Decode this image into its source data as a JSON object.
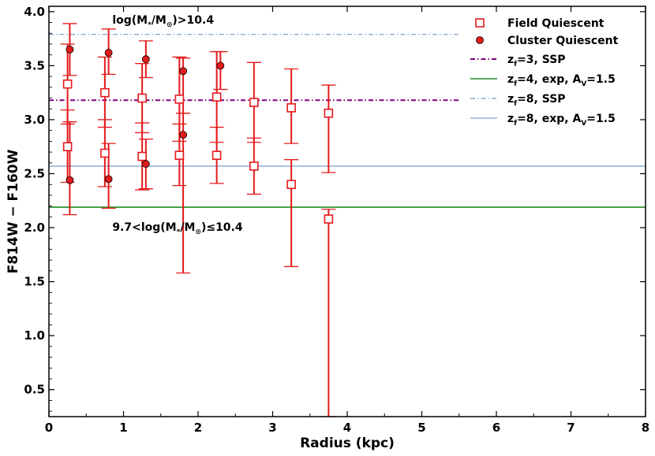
{
  "chart_data": {
    "type": "scatter",
    "xlabel": "Radius (kpc)",
    "ylabel": "F814W − F160W",
    "xlim": [
      0,
      8
    ],
    "ylim": [
      0.25,
      4.05
    ],
    "x_ticks": [
      0,
      1,
      2,
      3,
      4,
      5,
      6,
      7,
      8
    ],
    "y_ticks": [
      0.5,
      1.0,
      1.5,
      2.0,
      2.5,
      3.0,
      3.5,
      4.0
    ],
    "x_tick_labels": [
      "0",
      "1",
      "2",
      "3",
      "4",
      "5",
      "6",
      "7",
      "8"
    ],
    "y_tick_labels": [
      "0.5",
      "1.0",
      "1.5",
      "2.0",
      "2.5",
      "3.0",
      "3.5",
      "4.0"
    ],
    "grid": false,
    "legend_position": "top-right",
    "annotations": {
      "high_mass": {
        "main": "log(M",
        "sub1": "*",
        "mid": "/M",
        "sub2": "⊙",
        "tail": ")>10.4",
        "x": 0.85,
        "y": 3.89
      },
      "low_mass": {
        "main": "9.7<log(M",
        "sub1": "*",
        "mid": "/M",
        "sub2": "⊙",
        "tail": ")≤10.4",
        "x": 0.85,
        "y": 1.97
      }
    },
    "series": [
      {
        "name": "Field Quiescent",
        "marker": "square-open",
        "color": "#e41a1c",
        "points": [
          {
            "x": 0.25,
            "y": 3.33,
            "lo": 2.96,
            "hi": 3.7
          },
          {
            "x": 0.75,
            "y": 3.25,
            "lo": 2.93,
            "hi": 3.58
          },
          {
            "x": 1.25,
            "y": 3.2,
            "lo": 2.88,
            "hi": 3.52
          },
          {
            "x": 1.75,
            "y": 3.19,
            "lo": 2.8,
            "hi": 3.58
          },
          {
            "x": 2.25,
            "y": 3.21,
            "lo": 2.79,
            "hi": 3.63
          },
          {
            "x": 2.75,
            "y": 3.16,
            "lo": 2.79,
            "hi": 3.53
          },
          {
            "x": 3.25,
            "y": 3.11,
            "lo": 2.78,
            "hi": 3.47
          },
          {
            "x": 3.75,
            "y": 3.06,
            "lo": 2.51,
            "hi": 3.32
          },
          {
            "x": 0.25,
            "y": 2.75,
            "lo": 2.42,
            "hi": 3.09
          },
          {
            "x": 0.75,
            "y": 2.69,
            "lo": 2.38,
            "hi": 3.0
          },
          {
            "x": 1.25,
            "y": 2.66,
            "lo": 2.35,
            "hi": 2.97
          },
          {
            "x": 1.75,
            "y": 2.67,
            "lo": 2.39,
            "hi": 2.96
          },
          {
            "x": 2.25,
            "y": 2.67,
            "lo": 2.41,
            "hi": 2.93
          },
          {
            "x": 2.75,
            "y": 2.57,
            "lo": 2.31,
            "hi": 2.83
          },
          {
            "x": 3.25,
            "y": 2.4,
            "lo": 1.64,
            "hi": 2.63
          },
          {
            "x": 3.75,
            "y": 2.08,
            "lo": 0.25,
            "hi": 2.17
          }
        ]
      },
      {
        "name": "Cluster Quiescent",
        "marker": "circle-filled",
        "color": "#e41a1c",
        "points": [
          {
            "x": 0.28,
            "y": 3.65,
            "lo": 3.41,
            "hi": 3.89
          },
          {
            "x": 0.8,
            "y": 3.62,
            "lo": 3.42,
            "hi": 3.84
          },
          {
            "x": 1.3,
            "y": 3.56,
            "lo": 3.39,
            "hi": 3.73
          },
          {
            "x": 1.8,
            "y": 3.45,
            "lo": 3.06,
            "hi": 3.57
          },
          {
            "x": 2.3,
            "y": 3.5,
            "lo": 3.28,
            "hi": 3.63
          },
          {
            "x": 0.28,
            "y": 2.44,
            "lo": 2.12,
            "hi": 2.98
          },
          {
            "x": 0.8,
            "y": 2.45,
            "lo": 2.18,
            "hi": 2.78
          },
          {
            "x": 1.3,
            "y": 2.59,
            "lo": 2.36,
            "hi": 2.82
          },
          {
            "x": 1.8,
            "y": 2.86,
            "lo": 1.58,
            "hi": 3.06
          }
        ]
      }
    ],
    "model_lines": [
      {
        "name": "z",
        "sub": "f",
        "rest": "=3, SSP",
        "y": 3.18,
        "x0": 0.0,
        "x1": 5.5,
        "color": "#800080",
        "dash": "6,3,1.5,3",
        "width": 2.0
      },
      {
        "name": "z",
        "sub": "f",
        "rest": "=4, exp, A",
        "sub2": "V",
        "rest2": "=1.5",
        "y": 2.19,
        "x0": 0.0,
        "x1": 8.0,
        "color": "#228b22",
        "dash": "",
        "width": 1.6
      },
      {
        "name": "z",
        "sub": "f",
        "rest": "=8, SSP",
        "y": 3.79,
        "x0": 0.0,
        "x1": 5.5,
        "color": "#87aed8",
        "dash": "6,3,1.5,3",
        "width": 1.4
      },
      {
        "name": "z",
        "sub": "f",
        "rest": "=8, exp, A",
        "sub2": "V",
        "rest2": "=1.5",
        "y": 2.57,
        "x0": 0.0,
        "x1": 8.0,
        "color": "#93b5de",
        "dash": "",
        "width": 1.6
      }
    ]
  }
}
